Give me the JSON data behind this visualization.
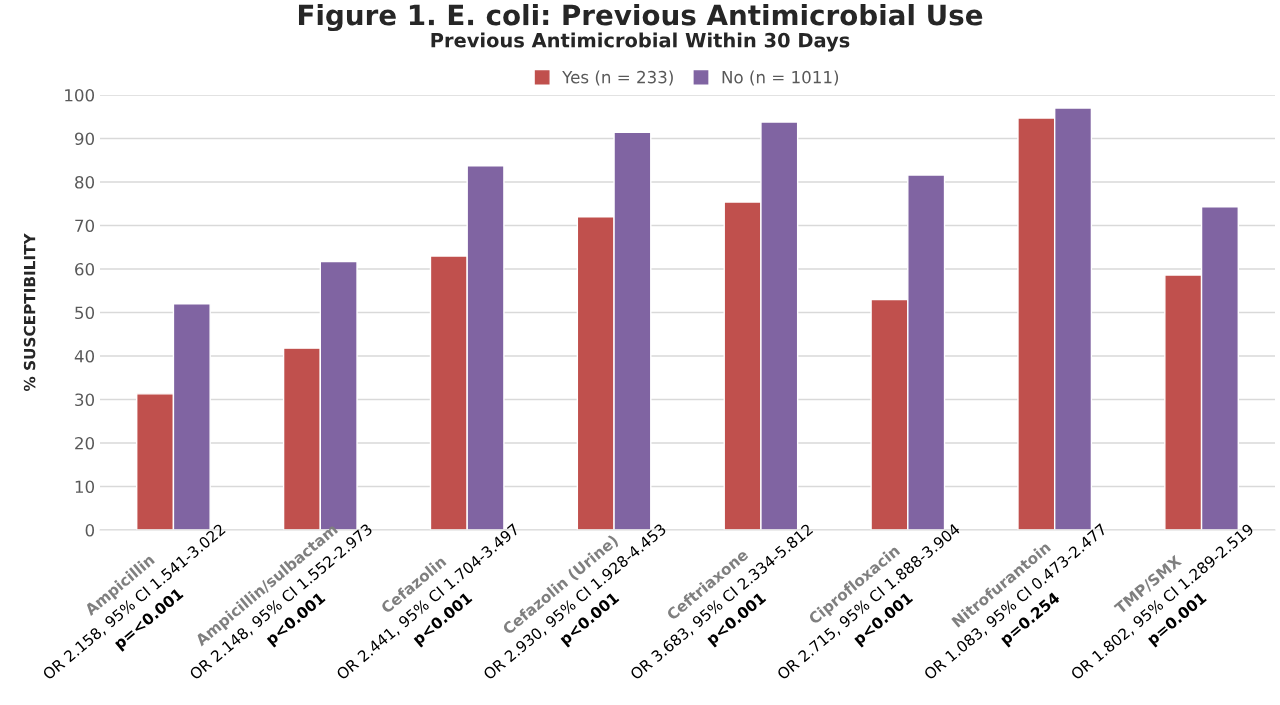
{
  "chart_data": {
    "type": "bar",
    "title": "Figure 1. E. coli: Previous Antimicrobial Use",
    "subtitle": "Previous Antimicrobial Within 30 Days",
    "ylabel": "% SUSCEPTIBILITY",
    "categories": [
      "Ampicillin\nOR 2.158, 95% CI 1.541-3.022\np=<0.001",
      "Ampicillin/sulbactam\nOR 2.148, 95% CI 1.552-2.973\np<0.001",
      "Cefazolin\nOR 2.441, 95% CI 1.704-3.497\np<0.001",
      "Cefazolin (Urine)\nOR 2.930, 95% CI 1.928-4.453\np<0.001",
      "Ceftriaxone\nOR 3.683, 95% CI 2.334-5.812\np<0.001",
      "Ciprofloxacin\nOR 2.715, 95% CI 1.888-3.904\np<0.001",
      "Nitrofurantoin\nOR 1.083, 95% CI 0.473-2.477\np=0.254",
      "TMP/SMX\nOR 1.802, 95% CI 1.289-2.519\np=0.001"
    ],
    "series": [
      {
        "name": "Yes (n = 233)",
        "color": "#c0504d",
        "values": [
          31.3,
          41.8,
          63.0,
          72.0,
          75.4,
          53.0,
          94.7,
          58.6
        ]
      },
      {
        "name": "No (n = 1011)",
        "color": "#8064a2",
        "values": [
          52.0,
          61.7,
          83.7,
          91.4,
          93.8,
          81.6,
          97.0,
          74.3
        ]
      }
    ],
    "ylim": [
      0,
      100
    ],
    "yticks": [
      0,
      10,
      20,
      30,
      40,
      50,
      60,
      70,
      80,
      90,
      100
    ],
    "grid": "y",
    "legend": "top"
  }
}
